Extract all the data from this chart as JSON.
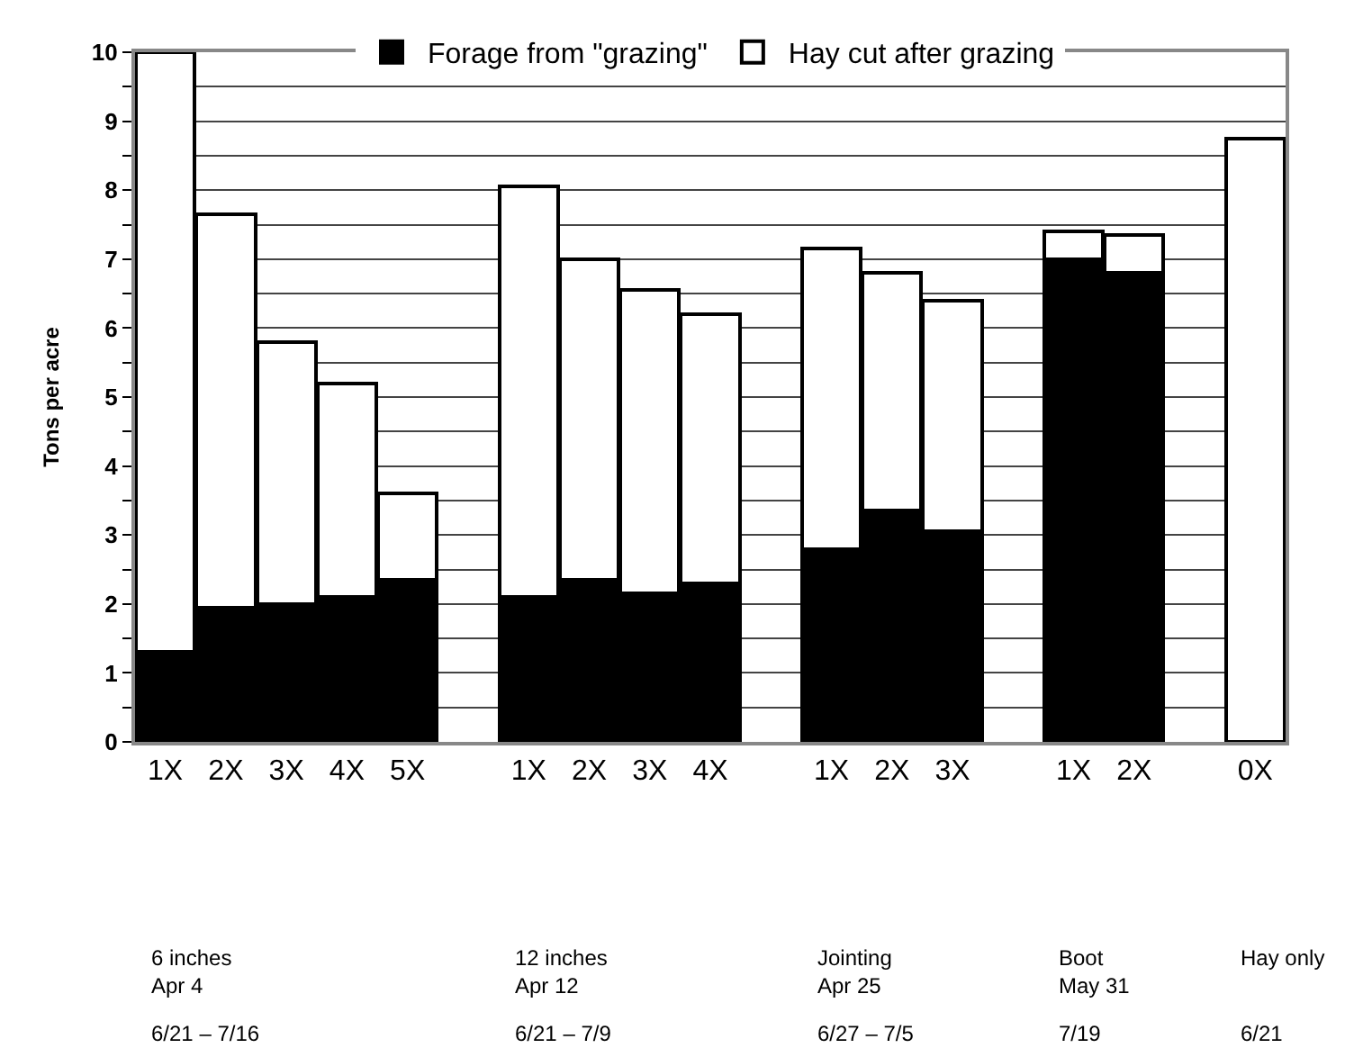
{
  "chart_data": {
    "type": "bar",
    "stacked": true,
    "ylabel": "Tons per acre",
    "categories": [
      "1X",
      "2X",
      "3X",
      "4X",
      "5X",
      null,
      "1X",
      "2X",
      "3X",
      "4X",
      null,
      "1X",
      "2X",
      "3X",
      null,
      "1X",
      "2X",
      null,
      "0X"
    ],
    "series": [
      {
        "name": "Forage from \"grazing\"",
        "color": "#000000",
        "values": [
          1.3,
          1.95,
          2.0,
          2.1,
          2.35,
          null,
          2.1,
          2.35,
          2.15,
          2.3,
          null,
          2.8,
          3.35,
          3.05,
          null,
          7.0,
          6.8,
          null,
          0
        ]
      },
      {
        "name": "Hay cut after grazing",
        "color": "#ffffff",
        "values": [
          8.7,
          5.7,
          3.8,
          3.1,
          1.25,
          null,
          5.95,
          4.65,
          4.4,
          3.9,
          null,
          4.35,
          3.45,
          3.35,
          null,
          0.4,
          0.55,
          null,
          8.75
        ]
      }
    ],
    "ylim": [
      0,
      10
    ],
    "yticks": [
      0,
      {
        "value": 0.5,
        "label": null
      },
      1,
      {
        "value": 1.5,
        "label": null
      },
      2,
      {
        "value": 2.5,
        "label": null
      },
      3,
      {
        "value": 3.5,
        "label": null
      },
      4,
      {
        "value": 4.5,
        "label": null
      },
      5,
      {
        "value": 5.5,
        "label": null
      },
      6,
      {
        "value": 6.5,
        "label": null
      },
      7,
      {
        "value": 7.5,
        "label": null
      },
      8,
      {
        "value": 8.5,
        "label": null
      },
      9,
      {
        "value": 9.5,
        "label": null
      },
      10
    ],
    "grid": "y",
    "legend": "top",
    "annotations": [
      "6 inches\nApr 4",
      "12 inches\nApr 12",
      "Jointing\nApr 25",
      "Boot\nMay 31",
      "Hay only",
      "6/21 – 7/16",
      "6/21 – 7/9",
      "6/27 – 7/5",
      "7/19",
      "6/21"
    ]
  }
}
